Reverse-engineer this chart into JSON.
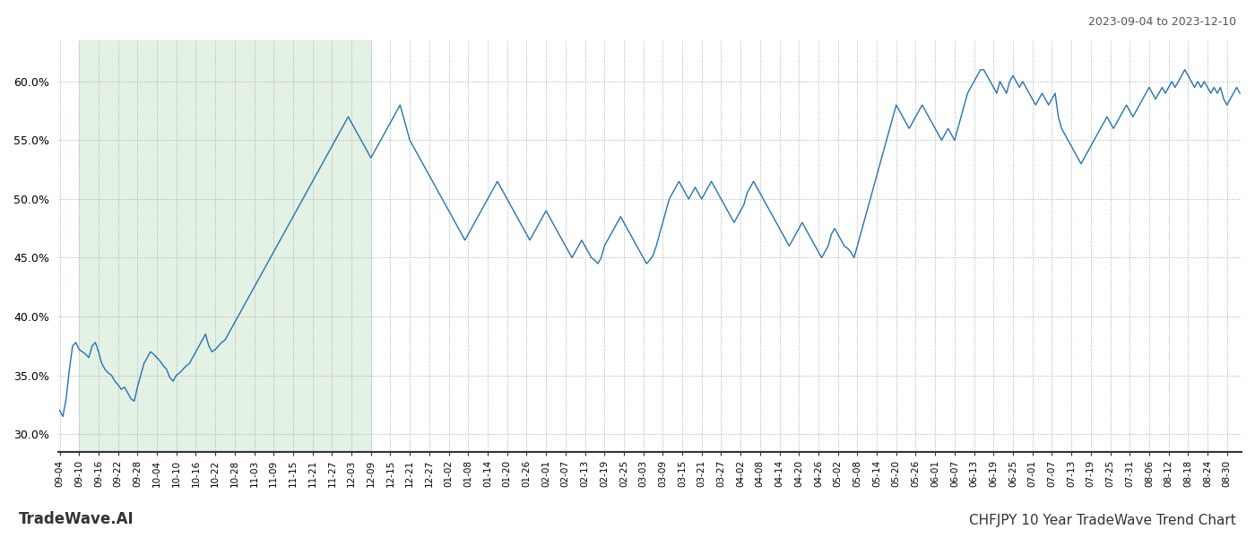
{
  "title_top_right": "2023-09-04 to 2023-12-10",
  "title_bottom_right": "CHFJPY 10 Year TradeWave Trend Chart",
  "title_bottom_left": "TradeWave.AI",
  "line_color": "#2672b0",
  "shade_color": "#d6ead7",
  "shade_alpha": 0.65,
  "ylim": [
    28.5,
    63.5
  ],
  "yticks": [
    30.0,
    35.0,
    40.0,
    45.0,
    50.0,
    55.0,
    60.0
  ],
  "x_labels": [
    "09-04",
    "09-10",
    "09-16",
    "09-22",
    "09-28",
    "10-04",
    "10-10",
    "10-16",
    "10-22",
    "10-28",
    "11-03",
    "11-09",
    "11-15",
    "11-21",
    "11-27",
    "12-03",
    "12-09",
    "12-15",
    "12-21",
    "12-27",
    "01-02",
    "01-08",
    "01-14",
    "01-20",
    "01-26",
    "02-01",
    "02-07",
    "02-13",
    "02-19",
    "02-25",
    "03-03",
    "03-09",
    "03-15",
    "03-21",
    "03-27",
    "04-02",
    "04-08",
    "04-14",
    "04-20",
    "04-26",
    "05-02",
    "05-08",
    "05-14",
    "05-20",
    "05-26",
    "06-01",
    "06-07",
    "06-13",
    "06-19",
    "06-25",
    "07-01",
    "07-07",
    "07-13",
    "07-19",
    "07-25",
    "07-31",
    "08-06",
    "08-12",
    "08-18",
    "08-24",
    "08-30"
  ],
  "shade_start_label": "09-10",
  "shade_end_label": "12-09",
  "values": [
    32.0,
    31.5,
    33.0,
    35.5,
    37.5,
    37.8,
    37.2,
    37.0,
    36.8,
    36.5,
    37.5,
    37.8,
    37.0,
    36.0,
    35.5,
    35.2,
    35.0,
    34.5,
    34.2,
    33.8,
    34.0,
    33.5,
    33.0,
    32.8,
    34.0,
    35.0,
    36.0,
    36.5,
    37.0,
    36.8,
    36.5,
    36.2,
    35.8,
    35.5,
    34.8,
    34.5,
    35.0,
    35.2,
    35.5,
    35.8,
    36.0,
    36.5,
    37.0,
    37.5,
    38.0,
    38.5,
    37.5,
    37.0,
    37.2,
    37.5,
    37.8,
    38.0,
    38.5,
    39.0,
    39.5,
    40.0,
    40.5,
    41.0,
    41.5,
    42.0,
    42.5,
    43.0,
    43.5,
    44.0,
    44.5,
    45.0,
    45.5,
    46.0,
    46.5,
    47.0,
    47.5,
    48.0,
    48.5,
    49.0,
    49.5,
    50.0,
    50.5,
    51.0,
    51.5,
    52.0,
    52.5,
    53.0,
    53.5,
    54.0,
    54.5,
    55.0,
    55.5,
    56.0,
    56.5,
    57.0,
    56.5,
    56.0,
    55.5,
    55.0,
    54.5,
    54.0,
    53.5,
    54.0,
    54.5,
    55.0,
    55.5,
    56.0,
    56.5,
    57.0,
    57.5,
    58.0,
    57.0,
    56.0,
    55.0,
    54.5,
    54.0,
    53.5,
    53.0,
    52.5,
    52.0,
    51.5,
    51.0,
    50.5,
    50.0,
    49.5,
    49.0,
    48.5,
    48.0,
    47.5,
    47.0,
    46.5,
    47.0,
    47.5,
    48.0,
    48.5,
    49.0,
    49.5,
    50.0,
    50.5,
    51.0,
    51.5,
    51.0,
    50.5,
    50.0,
    49.5,
    49.0,
    48.5,
    48.0,
    47.5,
    47.0,
    46.5,
    47.0,
    47.5,
    48.0,
    48.5,
    49.0,
    48.5,
    48.0,
    47.5,
    47.0,
    46.5,
    46.0,
    45.5,
    45.0,
    45.5,
    46.0,
    46.5,
    46.0,
    45.5,
    45.0,
    44.8,
    44.5,
    45.0,
    46.0,
    46.5,
    47.0,
    47.5,
    48.0,
    48.5,
    48.0,
    47.5,
    47.0,
    46.5,
    46.0,
    45.5,
    45.0,
    44.5,
    44.8,
    45.2,
    46.0,
    47.0,
    48.0,
    49.0,
    50.0,
    50.5,
    51.0,
    51.5,
    51.0,
    50.5,
    50.0,
    50.5,
    51.0,
    50.5,
    50.0,
    50.5,
    51.0,
    51.5,
    51.0,
    50.5,
    50.0,
    49.5,
    49.0,
    48.5,
    48.0,
    48.5,
    49.0,
    49.5,
    50.5,
    51.0,
    51.5,
    51.0,
    50.5,
    50.0,
    49.5,
    49.0,
    48.5,
    48.0,
    47.5,
    47.0,
    46.5,
    46.0,
    46.5,
    47.0,
    47.5,
    48.0,
    47.5,
    47.0,
    46.5,
    46.0,
    45.5,
    45.0,
    45.5,
    46.0,
    47.0,
    47.5,
    47.0,
    46.5,
    46.0,
    45.8,
    45.5,
    45.0,
    46.0,
    47.0,
    48.0,
    49.0,
    50.0,
    51.0,
    52.0,
    53.0,
    54.0,
    55.0,
    56.0,
    57.0,
    58.0,
    57.5,
    57.0,
    56.5,
    56.0,
    56.5,
    57.0,
    57.5,
    58.0,
    57.5,
    57.0,
    56.5,
    56.0,
    55.5,
    55.0,
    55.5,
    56.0,
    55.5,
    55.0,
    56.0,
    57.0,
    58.0,
    59.0,
    59.5,
    60.0,
    60.5,
    61.0,
    61.0,
    60.5,
    60.0,
    59.5,
    59.0,
    60.0,
    59.5,
    59.0,
    60.0,
    60.5,
    60.0,
    59.5,
    60.0,
    59.5,
    59.0,
    58.5,
    58.0,
    58.5,
    59.0,
    58.5,
    58.0,
    58.5,
    59.0,
    57.0,
    56.0,
    55.5,
    55.0,
    54.5,
    54.0,
    53.5,
    53.0,
    53.5,
    54.0,
    54.5,
    55.0,
    55.5,
    56.0,
    56.5,
    57.0,
    56.5,
    56.0,
    56.5,
    57.0,
    57.5,
    58.0,
    57.5,
    57.0,
    57.5,
    58.0,
    58.5,
    59.0,
    59.5,
    59.0,
    58.5,
    59.0,
    59.5,
    59.0,
    59.5,
    60.0,
    59.5,
    60.0,
    60.5,
    61.0,
    60.5,
    60.0,
    59.5,
    60.0,
    59.5,
    60.0,
    59.5,
    59.0,
    59.5,
    59.0,
    59.5,
    58.5,
    58.0,
    58.5,
    59.0,
    59.5,
    59.0
  ]
}
